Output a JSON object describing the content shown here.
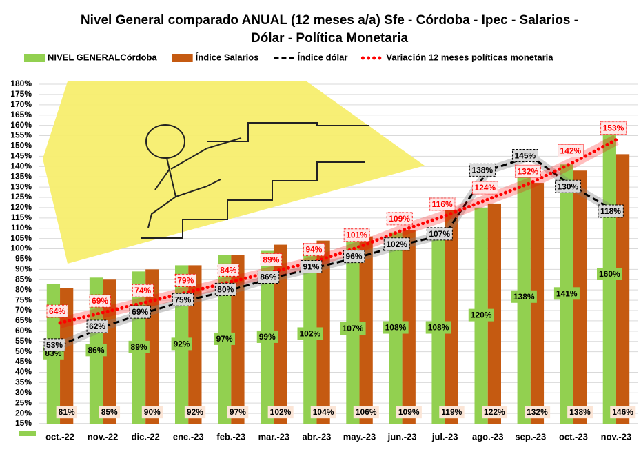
{
  "chart_data": {
    "type": "bar",
    "title": [
      "Nivel General comparado ANUAL (12 meses a/a) Sfe - Córdoba -  Ipec - Salarios  -",
      "Dólar - Política Monetaria"
    ],
    "categories": [
      "oct.-22",
      "nov.-22",
      "dic.-22",
      "ene.-23",
      "feb.-23",
      "mar.-23",
      "abr.-23",
      "may.-23",
      "jun.-23",
      "jul.-23",
      "ago.-23",
      "sep.-23",
      "oct.-23",
      "nov.-23"
    ],
    "series": [
      {
        "name": "NIVEL GENERALCórdoba",
        "type": "bar",
        "color": "#92d050",
        "values": [
          83,
          86,
          89,
          92,
          97,
          99,
          102,
          107,
          108,
          108,
          120,
          138,
          141,
          160
        ],
        "value_labels": [
          "83%",
          "86%",
          "89%",
          "92%",
          "97%",
          "99%",
          "102%",
          "107%",
          "108%",
          "108%",
          "120%",
          "138%",
          "141%",
          "160%"
        ]
      },
      {
        "name": "Índice Salarios",
        "type": "bar",
        "color": "#c55a11",
        "values": [
          81,
          85,
          90,
          92,
          97,
          102,
          104,
          106,
          109,
          119,
          122,
          132,
          138,
          146
        ],
        "value_labels": [
          "81%",
          "85%",
          "90%",
          "92%",
          "97%",
          "102%",
          "104%",
          "106%",
          "109%",
          "119%",
          "122%",
          "132%",
          "138%",
          "146%"
        ]
      },
      {
        "name": "Índice dólar",
        "type": "line",
        "line_style": "dashed",
        "color": "#000000",
        "values": [
          53,
          62,
          69,
          75,
          80,
          86,
          91,
          96,
          102,
          107,
          138,
          145,
          130,
          118
        ],
        "value_labels": [
          "53%",
          "62%",
          "69%",
          "75%",
          "80%",
          "86%",
          "91%",
          "96%",
          "102%",
          "107%",
          "138%",
          "145%",
          "130%",
          "118%"
        ]
      },
      {
        "name": "Variación 12 meses  políticas monetaria",
        "type": "line",
        "line_style": "dotted",
        "color": "#ff0000",
        "values": [
          64,
          69,
          74,
          79,
          84,
          89,
          94,
          101,
          109,
          116,
          124,
          132,
          142,
          153
        ],
        "value_labels": [
          "64%",
          "69%",
          "74%",
          "79%",
          "84%",
          "89%",
          "94%",
          "101%",
          "109%",
          "116%",
          "124%",
          "132%",
          "142%",
          "153%"
        ]
      }
    ],
    "ylim": [
      15,
      180
    ],
    "yticks": [
      {
        "value": 15,
        "label": "15%"
      },
      {
        "value": 20,
        "label": "20%"
      },
      {
        "value": 25,
        "label": "25%"
      },
      {
        "value": 30,
        "label": "30%"
      },
      {
        "value": 35,
        "label": "35%"
      },
      {
        "value": 40,
        "label": "40%"
      },
      {
        "value": 45,
        "label": "45%"
      },
      {
        "value": 50,
        "label": "50%"
      },
      {
        "value": 55,
        "label": "55%"
      },
      {
        "value": 60,
        "label": "60%"
      },
      {
        "value": 65,
        "label": "65%"
      },
      {
        "value": 70,
        "label": "70%"
      },
      {
        "value": 75,
        "label": "75%"
      },
      {
        "value": 80,
        "label": "80%"
      },
      {
        "value": 85,
        "label": "85%"
      },
      {
        "value": 90,
        "label": "90%"
      },
      {
        "value": 95,
        "label": "95%"
      },
      {
        "value": 100,
        "label": "100%"
      },
      {
        "value": 105,
        "label": "105%"
      },
      {
        "value": 110,
        "label": "110%"
      },
      {
        "value": 115,
        "label": "115%"
      },
      {
        "value": 120,
        "label": "120%"
      },
      {
        "value": 125,
        "label": "125%"
      },
      {
        "value": 130,
        "label": "130%"
      },
      {
        "value": 135,
        "label": "135%"
      },
      {
        "value": 140,
        "label": "140%"
      },
      {
        "value": 145,
        "label": "145%"
      },
      {
        "value": 150,
        "label": "150%"
      },
      {
        "value": 155,
        "label": "155%"
      },
      {
        "value": 160,
        "label": "160%"
      },
      {
        "value": 165,
        "label": "165%"
      },
      {
        "value": 170,
        "label": "170%"
      },
      {
        "value": 175,
        "label": "175%"
      },
      {
        "value": 180,
        "label": "180%"
      }
    ],
    "grid": true
  }
}
